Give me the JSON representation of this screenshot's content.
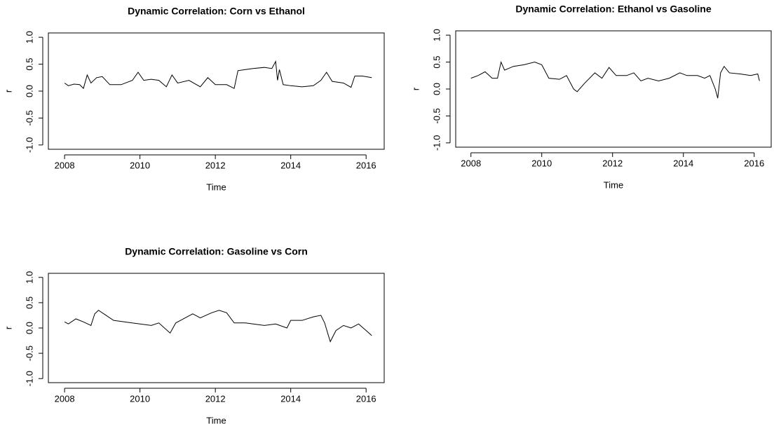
{
  "chart_data": [
    {
      "type": "line",
      "title": "Dynamic Correlation: Corn vs Ethanol",
      "xlabel": "Time",
      "ylabel": "r",
      "color": "#000000",
      "x": [
        2008.0,
        2008.1,
        2008.25,
        2008.4,
        2008.5,
        2008.6,
        2008.7,
        2008.85,
        2009.0,
        2009.2,
        2009.5,
        2009.8,
        2009.95,
        2010.1,
        2010.3,
        2010.5,
        2010.7,
        2010.85,
        2011.0,
        2011.3,
        2011.6,
        2011.8,
        2012.0,
        2012.3,
        2012.5,
        2012.6,
        2012.8,
        2013.0,
        2013.3,
        2013.5,
        2013.6,
        2013.65,
        2013.7,
        2013.8,
        2014.0,
        2014.3,
        2014.6,
        2014.8,
        2014.95,
        2015.1,
        2015.4,
        2015.6,
        2015.7,
        2015.9,
        2016.15
      ],
      "values": [
        0.15,
        0.1,
        0.13,
        0.12,
        0.05,
        0.3,
        0.15,
        0.25,
        0.27,
        0.12,
        0.12,
        0.2,
        0.35,
        0.2,
        0.22,
        0.2,
        0.08,
        0.3,
        0.15,
        0.2,
        0.08,
        0.25,
        0.12,
        0.12,
        0.05,
        0.38,
        0.4,
        0.42,
        0.44,
        0.42,
        0.55,
        0.2,
        0.4,
        0.12,
        0.1,
        0.08,
        0.1,
        0.2,
        0.35,
        0.18,
        0.15,
        0.07,
        0.28,
        0.28,
        0.25
      ],
      "xlim": [
        2007.57,
        2016.48
      ],
      "xticks": [
        2008,
        2010,
        2012,
        2014,
        2016
      ],
      "ylim": [
        -1.08,
        1.08
      ],
      "yticks": [
        {
          "value": -1,
          "label": "-1.0"
        },
        -0.5,
        {
          "value": 0,
          "label": "0.0"
        },
        0.5,
        {
          "value": 1,
          "label": "1.0"
        }
      ]
    },
    {
      "type": "line",
      "title": "Dynamic Correlation: Ethanol vs Gasoline",
      "xlabel": "Time",
      "ylabel": "r",
      "color": "#000000",
      "x": [
        2008.0,
        2008.2,
        2008.4,
        2008.6,
        2008.75,
        2008.85,
        2008.95,
        2009.2,
        2009.5,
        2009.8,
        2010.0,
        2010.2,
        2010.5,
        2010.7,
        2010.9,
        2011.0,
        2011.2,
        2011.5,
        2011.7,
        2011.9,
        2012.1,
        2012.4,
        2012.6,
        2012.8,
        2013.0,
        2013.3,
        2013.6,
        2013.9,
        2014.1,
        2014.4,
        2014.6,
        2014.75,
        2014.9,
        2014.97,
        2015.05,
        2015.15,
        2015.3,
        2015.6,
        2015.9,
        2016.1,
        2016.15
      ],
      "values": [
        0.2,
        0.25,
        0.32,
        0.2,
        0.2,
        0.5,
        0.35,
        0.42,
        0.45,
        0.5,
        0.45,
        0.2,
        0.18,
        0.25,
        0.0,
        -0.05,
        0.1,
        0.3,
        0.2,
        0.4,
        0.25,
        0.25,
        0.3,
        0.15,
        0.2,
        0.15,
        0.2,
        0.3,
        0.25,
        0.25,
        0.2,
        0.25,
        0.0,
        -0.17,
        0.3,
        0.42,
        0.3,
        0.28,
        0.25,
        0.28,
        0.15
      ],
      "xlim": [
        2007.57,
        2016.48
      ],
      "xticks": [
        2008,
        2010,
        2012,
        2014,
        2016
      ],
      "ylim": [
        -1.08,
        1.08
      ],
      "yticks": [
        {
          "value": -1,
          "label": "-1.0"
        },
        -0.5,
        {
          "value": 0,
          "label": "0.0"
        },
        0.5,
        {
          "value": 1,
          "label": "1.0"
        }
      ]
    },
    {
      "type": "line",
      "title": "Dynamic Correlation: Gasoline vs Corn",
      "xlabel": "Time",
      "ylabel": "r",
      "color": "#000000",
      "x": [
        2008.0,
        2008.1,
        2008.3,
        2008.5,
        2008.7,
        2008.8,
        2008.9,
        2009.1,
        2009.3,
        2009.6,
        2010.0,
        2010.3,
        2010.5,
        2010.8,
        2010.95,
        2011.2,
        2011.4,
        2011.6,
        2011.9,
        2012.1,
        2012.3,
        2012.5,
        2012.8,
        2013.0,
        2013.3,
        2013.6,
        2013.9,
        2014.0,
        2014.3,
        2014.6,
        2014.8,
        2014.9,
        2015.0,
        2015.05,
        2015.2,
        2015.4,
        2015.6,
        2015.8,
        2016.0,
        2016.15
      ],
      "values": [
        0.12,
        0.08,
        0.18,
        0.12,
        0.05,
        0.28,
        0.35,
        0.25,
        0.15,
        0.12,
        0.08,
        0.05,
        0.1,
        -0.1,
        0.1,
        0.2,
        0.28,
        0.2,
        0.3,
        0.35,
        0.3,
        0.1,
        0.1,
        0.08,
        0.05,
        0.08,
        0.0,
        0.15,
        0.15,
        0.22,
        0.25,
        0.1,
        -0.15,
        -0.27,
        -0.05,
        0.05,
        0.0,
        0.08,
        -0.05,
        -0.15
      ],
      "xlim": [
        2007.57,
        2016.48
      ],
      "xticks": [
        2008,
        2010,
        2012,
        2014,
        2016
      ],
      "ylim": [
        -1.08,
        1.08
      ],
      "yticks": [
        {
          "value": -1,
          "label": "-1.0"
        },
        -0.5,
        {
          "value": 0,
          "label": "0.0"
        },
        0.5,
        {
          "value": 1,
          "label": "1.0"
        }
      ]
    }
  ]
}
